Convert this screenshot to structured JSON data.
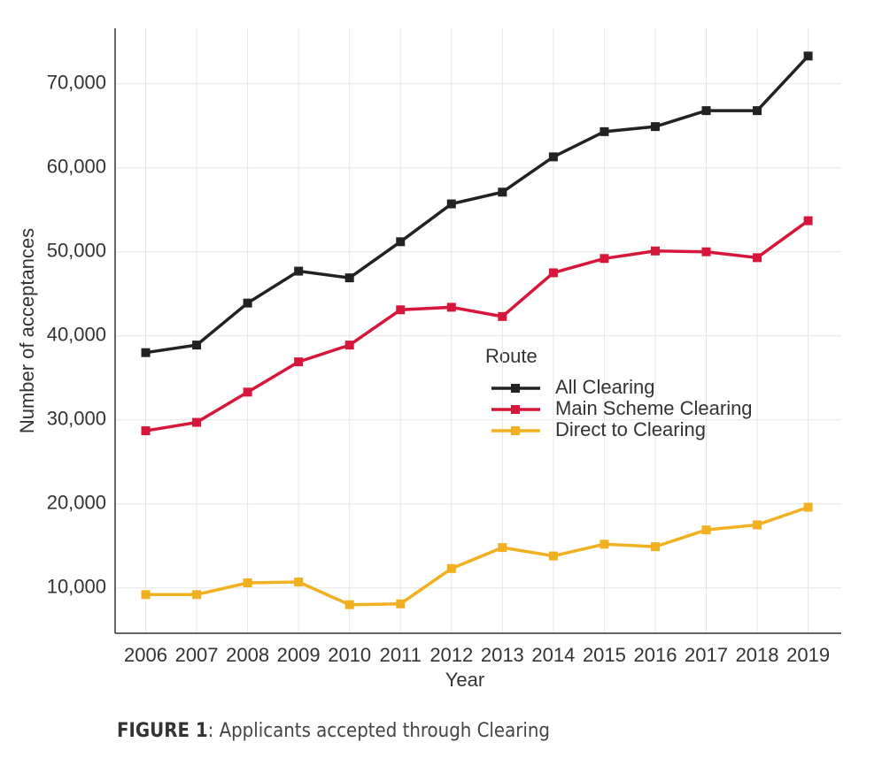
{
  "chart_data": {
    "type": "line",
    "x": [
      2006,
      2007,
      2008,
      2009,
      2010,
      2011,
      2012,
      2013,
      2014,
      2015,
      2016,
      2017,
      2018,
      2019
    ],
    "xlim": [
      2005.4,
      2019.65
    ],
    "xticks": [
      2006,
      2007,
      2008,
      2009,
      2010,
      2011,
      2012,
      2013,
      2014,
      2015,
      2016,
      2017,
      2018,
      2019
    ],
    "ylim": [
      4600,
      76600
    ],
    "yticks": [
      {
        "value": 10000,
        "label": "10,000"
      },
      {
        "value": 20000,
        "label": "20,000"
      },
      {
        "value": 30000,
        "label": "30,000"
      },
      {
        "value": 40000,
        "label": "40,000"
      },
      {
        "value": 50000,
        "label": "50,000"
      },
      {
        "value": 60000,
        "label": "60,000"
      },
      {
        "value": 70000,
        "label": "70,000"
      }
    ],
    "x_label": "Year",
    "y_label": "Number of acceptances",
    "legend_title": "Route",
    "legend_position": "center",
    "grid": true,
    "series": [
      {
        "name": "All Clearing",
        "color": "#222222",
        "values": [
          38000,
          38900,
          43900,
          47700,
          46900,
          51200,
          55700,
          57100,
          61300,
          64300,
          64900,
          66800,
          66800,
          73300
        ]
      },
      {
        "name": "Main Scheme Clearing",
        "color": "#d6163a",
        "values": [
          28700,
          29700,
          33300,
          36900,
          38900,
          43100,
          43400,
          42300,
          47500,
          49200,
          50100,
          50000,
          49300,
          53700
        ]
      },
      {
        "name": "Direct to Clearing",
        "color": "#f0b020",
        "values": [
          9200,
          9200,
          10600,
          10700,
          8000,
          8100,
          12300,
          14800,
          13800,
          15200,
          14900,
          16900,
          17500,
          19600
        ]
      }
    ],
    "caption_label": "FIGURE 1",
    "caption_text": ": Applicants accepted through Clearing"
  }
}
